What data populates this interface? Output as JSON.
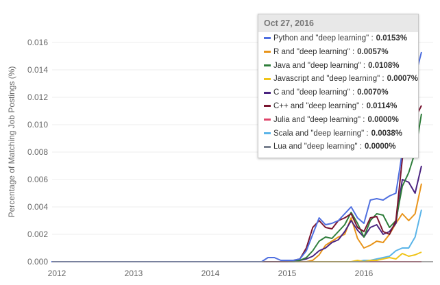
{
  "chart_data": {
    "type": "line",
    "title": "",
    "ylabel": "Percentage of Matching Job Postings (%)",
    "xlabel": "",
    "ylim": [
      0,
      0.016
    ],
    "yticks": [
      "0.000",
      "0.002",
      "0.004",
      "0.006",
      "0.008",
      "0.010",
      "0.012",
      "0.014",
      "0.016"
    ],
    "xticks": [
      "2012",
      "2013",
      "2014",
      "2015",
      "2016"
    ],
    "grid": true,
    "x": [
      "2012-01",
      "2014-09",
      "2014-10",
      "2014-11",
      "2014-12",
      "2015-01",
      "2015-02",
      "2015-03",
      "2015-04",
      "2015-05",
      "2015-06",
      "2015-07",
      "2015-08",
      "2015-09",
      "2015-10",
      "2015-11",
      "2015-12",
      "2016-01",
      "2016-02",
      "2016-03",
      "2016-04",
      "2016-05",
      "2016-06",
      "2016-07",
      "2016-08",
      "2016-09",
      "2016-10"
    ],
    "series": [
      {
        "name": "Python and \"deep learning\"",
        "color": "#4f6fe0",
        "tooltip_value": "0.0153%",
        "values": [
          0,
          0,
          0.0003,
          0.0003,
          0.0001,
          0.0001,
          0.0001,
          0.0002,
          0.0008,
          0.002,
          0.0032,
          0.0027,
          0.0028,
          0.003,
          0.0035,
          0.004,
          0.0032,
          0.0028,
          0.0045,
          0.0046,
          0.0045,
          0.0048,
          0.005,
          0.008,
          0.011,
          0.0135,
          0.0153
        ]
      },
      {
        "name": "R and \"deep learning\"",
        "color": "#e8941a",
        "tooltip_value": "0.0057%",
        "values": [
          0,
          0,
          0,
          0,
          0,
          0,
          0,
          0,
          0,
          0.0001,
          0.0005,
          0.0012,
          0.0015,
          0.0018,
          0.002,
          0.0032,
          0.0017,
          0.001,
          0.0012,
          0.0015,
          0.0014,
          0.002,
          0.0028,
          0.0035,
          0.003,
          0.0035,
          0.0057
        ]
      },
      {
        "name": "Java and \"deep learning\"",
        "color": "#2e7d3a",
        "tooltip_value": "0.0108%",
        "values": [
          0,
          0,
          0,
          0,
          0,
          0,
          0,
          0.0001,
          0.0003,
          0.0008,
          0.0015,
          0.0018,
          0.0017,
          0.0022,
          0.0027,
          0.0036,
          0.0028,
          0.0018,
          0.003,
          0.0035,
          0.0034,
          0.0025,
          0.003,
          0.0055,
          0.0065,
          0.008,
          0.0108
        ]
      },
      {
        "name": "Javascript and \"deep learning\"",
        "color": "#f0c419",
        "tooltip_value": "0.0007%",
        "values": [
          0,
          0,
          0,
          0,
          0,
          0,
          0,
          0,
          0,
          0,
          0,
          0,
          0,
          0,
          0,
          0,
          0.0001,
          0,
          0.0001,
          0.0001,
          0.0002,
          0.0003,
          0.0002,
          0.0006,
          0.0004,
          0.0005,
          0.0007
        ]
      },
      {
        "name": "C and \"deep learning\"",
        "color": "#4a2380",
        "tooltip_value": "0.0070%",
        "values": [
          0,
          0,
          0,
          0,
          0,
          0,
          0,
          0.0001,
          0.0002,
          0.0004,
          0.0008,
          0.001,
          0.0014,
          0.0016,
          0.0022,
          0.003,
          0.0023,
          0.0018,
          0.0025,
          0.0027,
          0.002,
          0.0022,
          0.0028,
          0.006,
          0.0058,
          0.005,
          0.007
        ]
      },
      {
        "name": "C++ and \"deep learning\"",
        "color": "#7a1530",
        "tooltip_value": "0.0114%",
        "values": [
          0,
          0,
          0,
          0,
          0,
          0,
          0.0001,
          0.0002,
          0.001,
          0.0025,
          0.003,
          0.0025,
          0.0024,
          0.003,
          0.0032,
          0.0035,
          0.0025,
          0.0022,
          0.0032,
          0.0033,
          0.0022,
          0.002,
          0.003,
          0.0075,
          0.0095,
          0.0105,
          0.0114
        ]
      },
      {
        "name": "Julia and \"deep learning\"",
        "color": "#e0446a",
        "tooltip_value": "0.0000%",
        "values": [
          0,
          0,
          0,
          0,
          0,
          0,
          0,
          0,
          0,
          0,
          0,
          0,
          0,
          0,
          0,
          0,
          0,
          0,
          0,
          0,
          0,
          0,
          0,
          0,
          0,
          0,
          0
        ]
      },
      {
        "name": "Scala and \"deep learning\"",
        "color": "#5ab4e8",
        "tooltip_value": "0.0038%",
        "values": [
          0,
          0,
          0,
          0,
          0,
          0,
          0,
          0,
          0,
          0,
          0,
          0,
          0,
          0,
          0,
          0,
          0,
          0.0001,
          0.0001,
          0.0002,
          0.0003,
          0.0004,
          0.0008,
          0.001,
          0.001,
          0.0018,
          0.0038
        ]
      },
      {
        "name": "Lua and \"deep learning\"",
        "color": "#7a8290",
        "tooltip_value": "0.0000%",
        "values": [
          0,
          0,
          0,
          0,
          0,
          0,
          0,
          0,
          0,
          0,
          0,
          0,
          0,
          0,
          0,
          0,
          0,
          0,
          0,
          0,
          0,
          0,
          0,
          0,
          0,
          0,
          0
        ]
      }
    ],
    "tooltip": {
      "date": "Oct 27, 2016"
    }
  }
}
